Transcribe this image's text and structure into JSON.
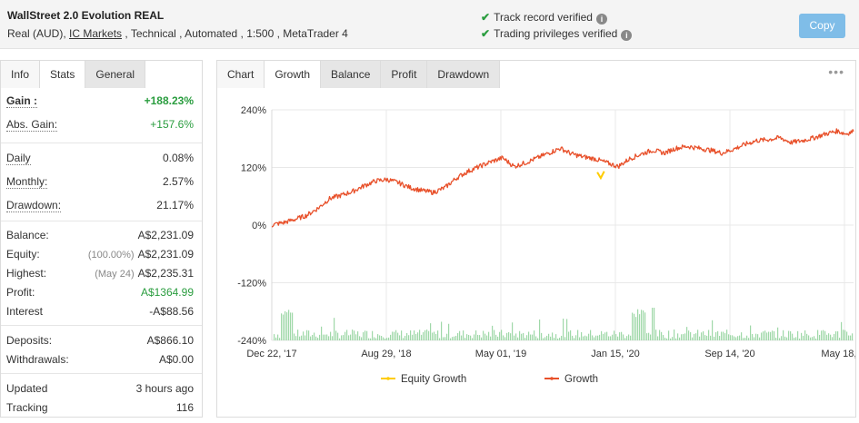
{
  "account": {
    "name": "WallStreet 2.0 Evolution REAL",
    "info_prefix": "Real (AUD), ",
    "broker": "IC Markets",
    "info_suffix": " , Technical , Automated , 1:500 , MetaTrader 4"
  },
  "verification": {
    "track_record": "Track record verified",
    "trading_privileges": "Trading privileges verified"
  },
  "copy_label": "Copy",
  "left_tabs": [
    "Info",
    "Stats",
    "General"
  ],
  "stats": {
    "gain_label": "Gain :",
    "gain_value": "+188.23%",
    "abs_gain_label": "Abs. Gain:",
    "abs_gain_value": "+157.6%",
    "daily_label": "Daily",
    "daily_value": "0.08%",
    "monthly_label": "Monthly:",
    "monthly_value": "2.57%",
    "drawdown_label": "Drawdown:",
    "drawdown_value": "21.17%",
    "balance_label": "Balance:",
    "balance_value": "A$2,231.09",
    "equity_label": "Equity:",
    "equity_pct": "(100.00%)",
    "equity_value": "A$2,231.09",
    "highest_label": "Highest:",
    "highest_date": "(May 24)",
    "highest_value": "A$2,235.31",
    "profit_label": "Profit:",
    "profit_value": "A$1364.99",
    "interest_label": "Interest",
    "interest_value": "-A$88.56",
    "deposits_label": "Deposits:",
    "deposits_value": "A$866.10",
    "withdrawals_label": "Withdrawals:",
    "withdrawals_value": "A$0.00",
    "updated_label": "Updated",
    "updated_value": "3 hours ago",
    "tracking_label": "Tracking",
    "tracking_value": "116"
  },
  "right_tabs": [
    "Chart",
    "Growth",
    "Balance",
    "Profit",
    "Drawdown"
  ],
  "more_icon": "more-dots-icon",
  "colors": {
    "growth": "#e8502a",
    "equity_growth": "#ffcc00",
    "volume": "#9fd8a8",
    "check": "#2a9d3f",
    "copy_button": "#7fbde8"
  },
  "chart_data": {
    "type": "line",
    "y_ticks": [
      "240%",
      "120%",
      "0%",
      "-120%",
      "-240%"
    ],
    "y_range": [
      -240,
      240
    ],
    "x_ticks": [
      "Dec 22, '17",
      "Aug 29, '18",
      "May 01, '19",
      "Jan 15, '20",
      "Sep 14, '20",
      "May 18, ..."
    ],
    "series": [
      {
        "name": "Growth",
        "points": [
          [
            0,
            0
          ],
          [
            0.5,
            3
          ],
          [
            1,
            5
          ],
          [
            2,
            12
          ],
          [
            3,
            20
          ],
          [
            4,
            35
          ],
          [
            5,
            55
          ],
          [
            6,
            62
          ],
          [
            7,
            70
          ],
          [
            8,
            82
          ],
          [
            9,
            92
          ],
          [
            10,
            95
          ],
          [
            11,
            88
          ],
          [
            12,
            78
          ],
          [
            13,
            72
          ],
          [
            14,
            68
          ],
          [
            15,
            78
          ],
          [
            16,
            98
          ],
          [
            17,
            112
          ],
          [
            18,
            122
          ],
          [
            19,
            132
          ],
          [
            20,
            140
          ],
          [
            21,
            122
          ],
          [
            22,
            130
          ],
          [
            23,
            140
          ],
          [
            24,
            150
          ],
          [
            25,
            160
          ],
          [
            26,
            148
          ],
          [
            27,
            142
          ],
          [
            28,
            138
          ],
          [
            29,
            130
          ],
          [
            30,
            122
          ],
          [
            31,
            138
          ],
          [
            32,
            148
          ],
          [
            33,
            156
          ],
          [
            34,
            150
          ],
          [
            35,
            160
          ],
          [
            36,
            164
          ],
          [
            37,
            160
          ],
          [
            38,
            156
          ],
          [
            39,
            150
          ],
          [
            40,
            158
          ],
          [
            41,
            168
          ],
          [
            42,
            176
          ],
          [
            43,
            178
          ],
          [
            44,
            182
          ],
          [
            45,
            172
          ],
          [
            46,
            176
          ],
          [
            47,
            182
          ],
          [
            48,
            190
          ],
          [
            49,
            196
          ],
          [
            49.7,
            190
          ],
          [
            50.4,
            195
          ]
        ]
      },
      {
        "name": "Equity Growth",
        "points": [
          [
            0,
            0
          ],
          [
            5,
            55
          ],
          [
            10,
            95
          ],
          [
            15,
            78
          ],
          [
            20,
            140
          ],
          [
            26,
            148
          ],
          [
            28,
            110
          ],
          [
            30,
            122
          ],
          [
            35,
            160
          ],
          [
            40,
            158
          ],
          [
            45,
            172
          ],
          [
            50.4,
            195
          ]
        ]
      }
    ],
    "legend": [
      "Equity Growth",
      "Growth"
    ],
    "legend_position": "bottom",
    "grid": true
  }
}
